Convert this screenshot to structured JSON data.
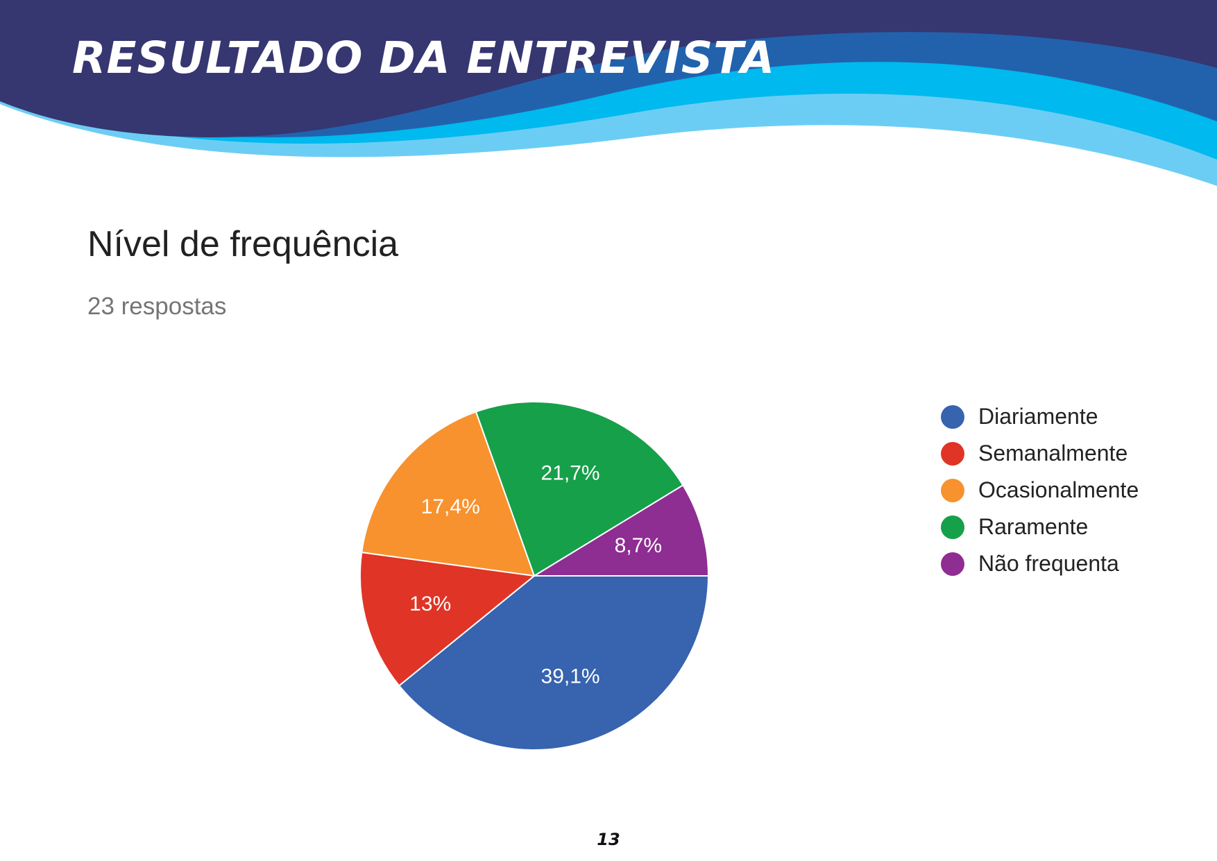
{
  "header": {
    "title": "RESULTADO DA ENTREVISTA",
    "colors": {
      "navy": "#363671",
      "blue": "#2262ad",
      "cyan": "#00b9ee",
      "light": "#6ccdf4"
    }
  },
  "chart_data": {
    "type": "pie",
    "title": "Nível de frequência",
    "subtitle": "23 respostas",
    "legend_position": "right",
    "slices": [
      {
        "label": "Diariamente",
        "value": 39.1,
        "display": "39,1%",
        "color": "#3763af"
      },
      {
        "label": "Semanalmente",
        "value": 13.0,
        "display": "13%",
        "color": "#e03426"
      },
      {
        "label": "Ocasionalmente",
        "value": 17.4,
        "display": "17,4%",
        "color": "#f7922e"
      },
      {
        "label": "Raramente",
        "value": 21.7,
        "display": "21,7%",
        "color": "#16a04a"
      },
      {
        "label": "Não frequenta",
        "value": 8.7,
        "display": "8,7%",
        "color": "#8e2d92"
      }
    ]
  },
  "footer": {
    "page_number": "13"
  }
}
